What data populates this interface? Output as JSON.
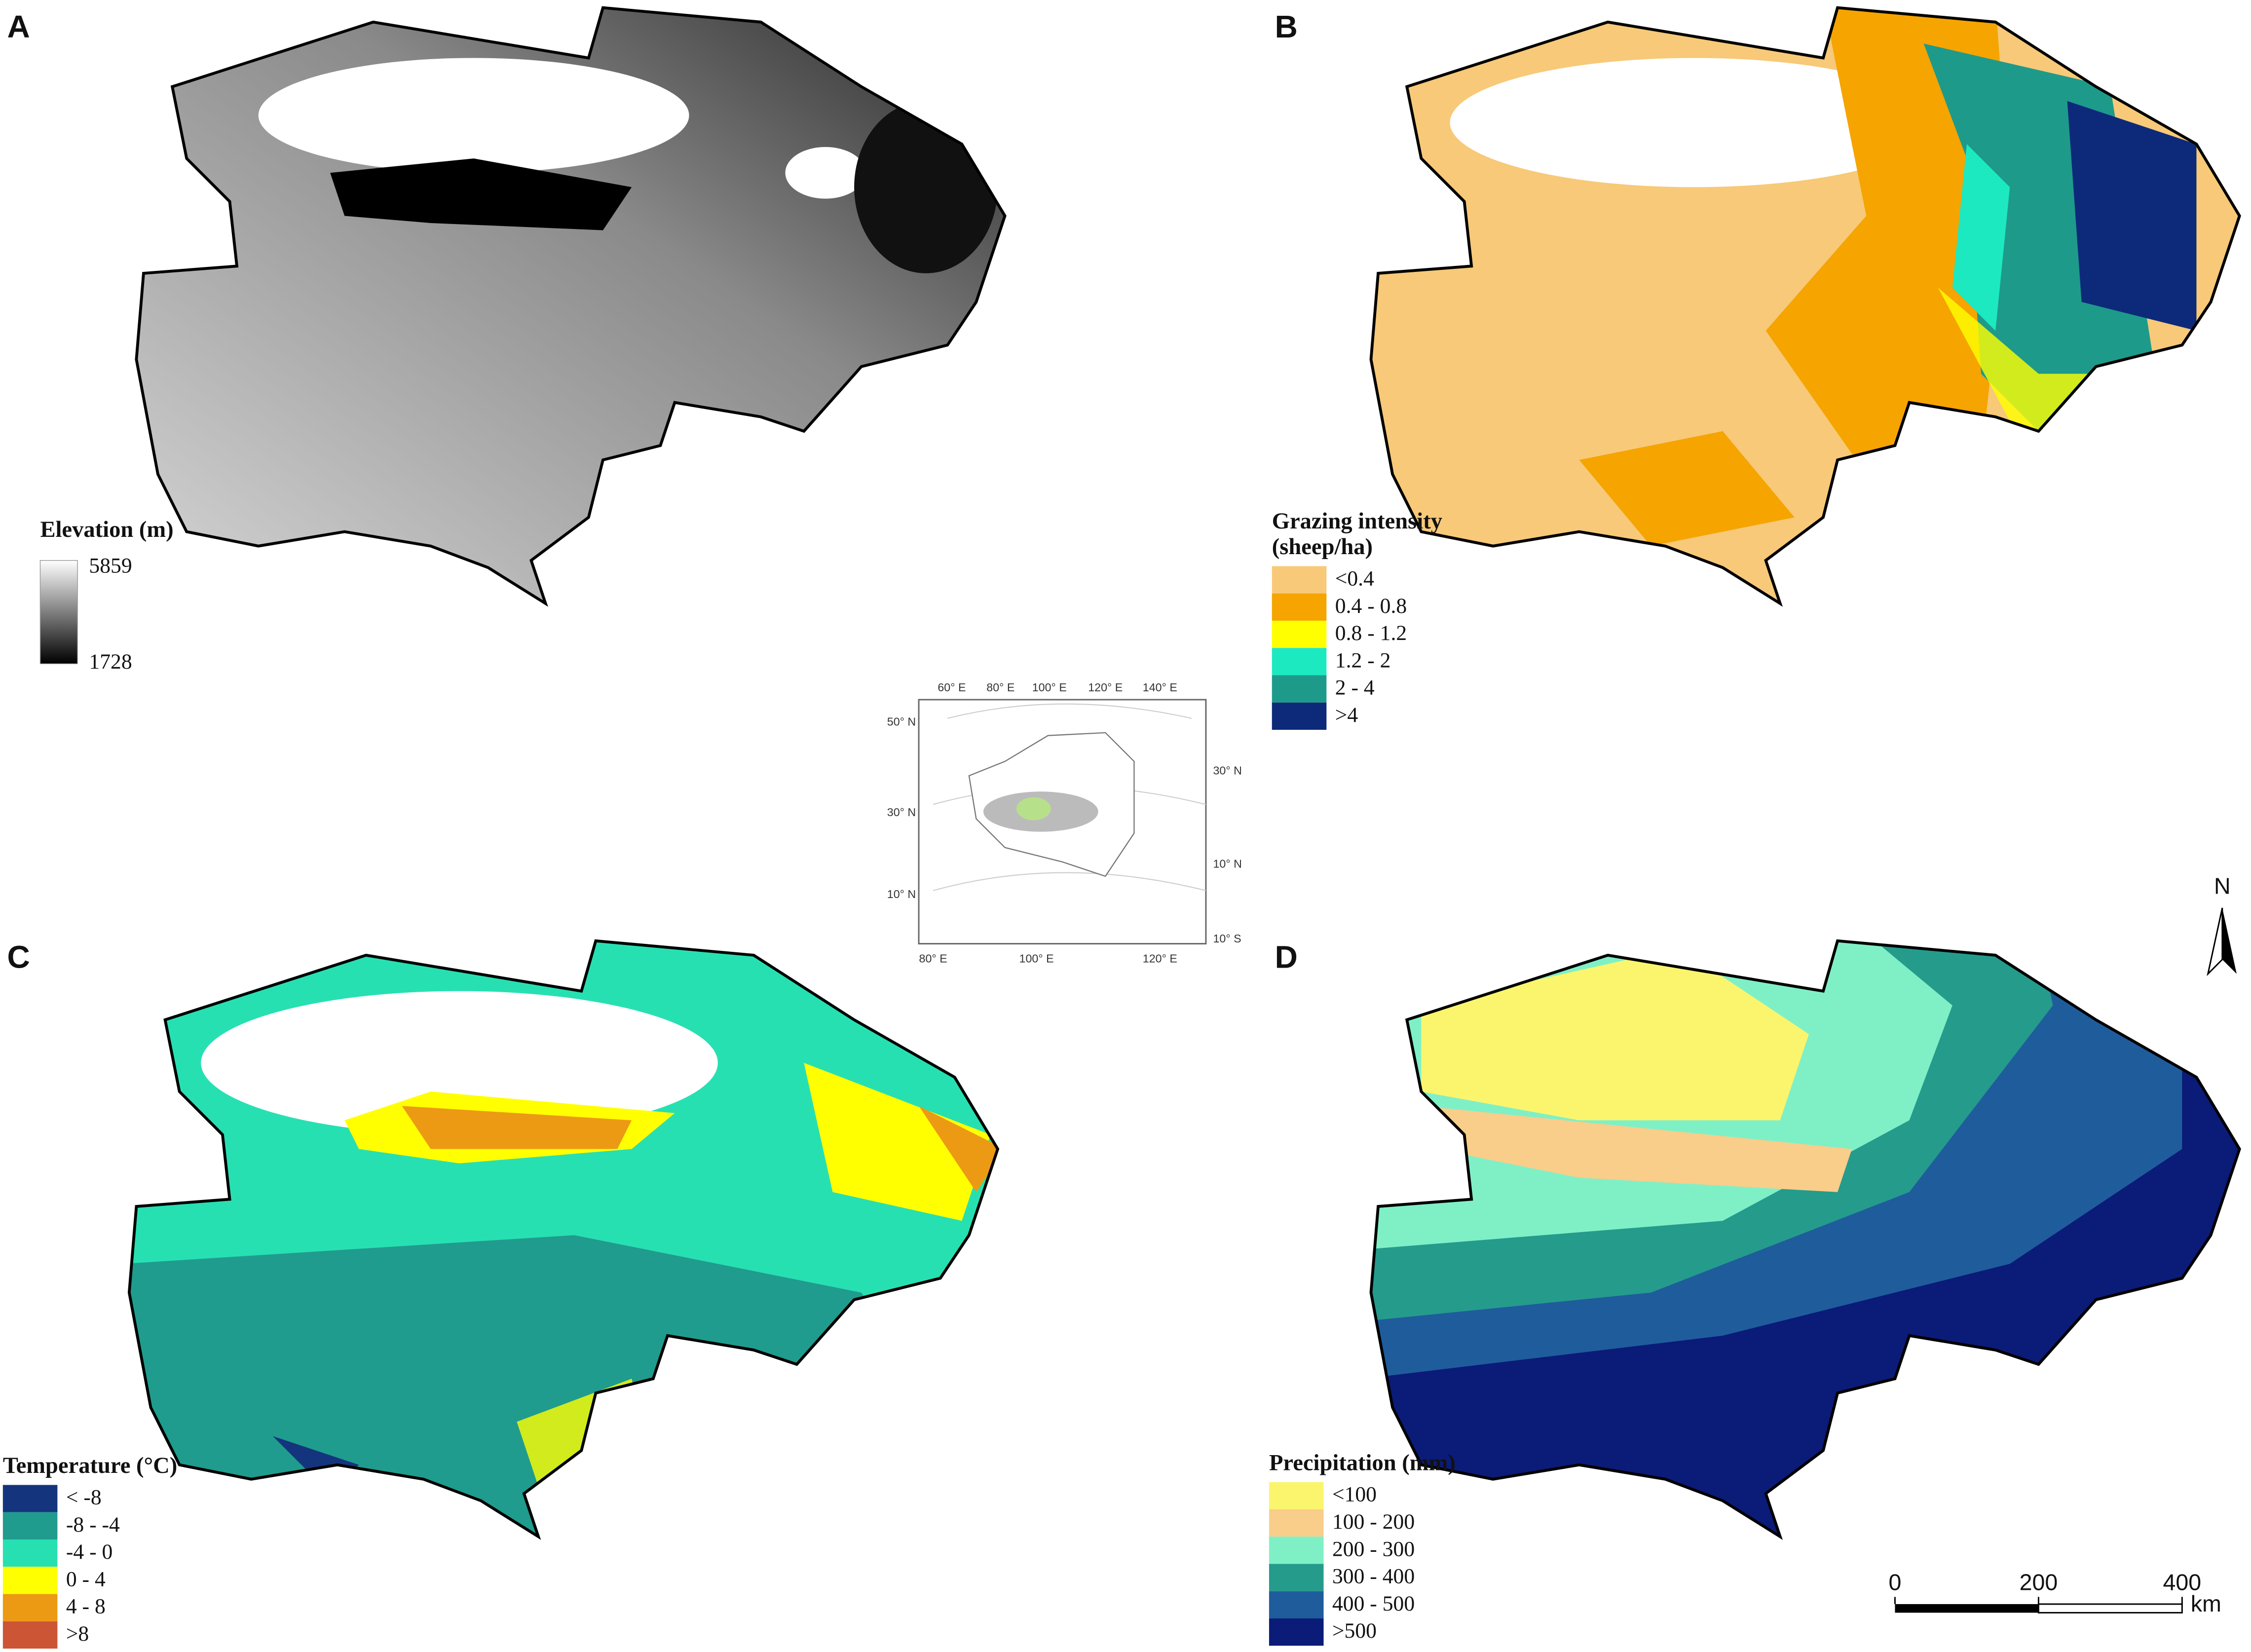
{
  "panels": [
    {
      "label": "A",
      "legend": {
        "title": "Elevation (m)",
        "max": 5859,
        "min": 1728
      }
    },
    {
      "label": "B",
      "legend": {
        "title_lines": [
          "Grazing intensity",
          "(sheep/ha)"
        ],
        "items": [
          {
            "label": "<0.4",
            "color": "#f7c978"
          },
          {
            "label": "0.4 - 0.8",
            "color": "#f5a400"
          },
          {
            "label": "0.8 - 1.2",
            "color": "#ffff00"
          },
          {
            "label": "1.2 - 2",
            "color": "#1de9c0"
          },
          {
            "label": "2 - 4",
            "color": "#1e9a8a"
          },
          {
            "label": ">4",
            "color": "#0d2a7a"
          }
        ]
      }
    },
    {
      "label": "C",
      "legend": {
        "title": "Temperature (°C)",
        "items": [
          {
            "label": "< -8",
            "color": "#14357d"
          },
          {
            "label": "-8 - -4",
            "color": "#1f9c8e"
          },
          {
            "label": "-4 - 0",
            "color": "#27e0b2"
          },
          {
            "label": "0 - 4",
            "color": "#ffff00"
          },
          {
            "label": "4 - 8",
            "color": "#ec9a14"
          },
          {
            "label": ">8",
            "color": "#cc5535"
          }
        ]
      }
    },
    {
      "label": "D",
      "legend": {
        "title": "Precipitation (mm)",
        "items": [
          {
            "label": "<100",
            "color": "#fbf56e"
          },
          {
            "label": "100 - 200",
            "color": "#f9cd8a"
          },
          {
            "label": "200 - 300",
            "color": "#7ff0c6"
          },
          {
            "label": "300 - 400",
            "color": "#259b8c"
          },
          {
            "label": "400 - 500",
            "color": "#1f5c9c"
          },
          {
            "label": ">500",
            "color": "#0b1b78"
          }
        ]
      }
    }
  ],
  "inset": {
    "labels": [
      "60° E",
      "80° E",
      "100° E",
      "120° E",
      "140° E",
      "50° N",
      "30° N",
      "10° N",
      "30° N",
      "10° N",
      "10° S",
      "80° E",
      "100° E",
      "120° E"
    ]
  },
  "north_arrow": "N",
  "scale_bar": {
    "ticks": [
      0,
      200,
      400
    ],
    "unit": "km"
  }
}
